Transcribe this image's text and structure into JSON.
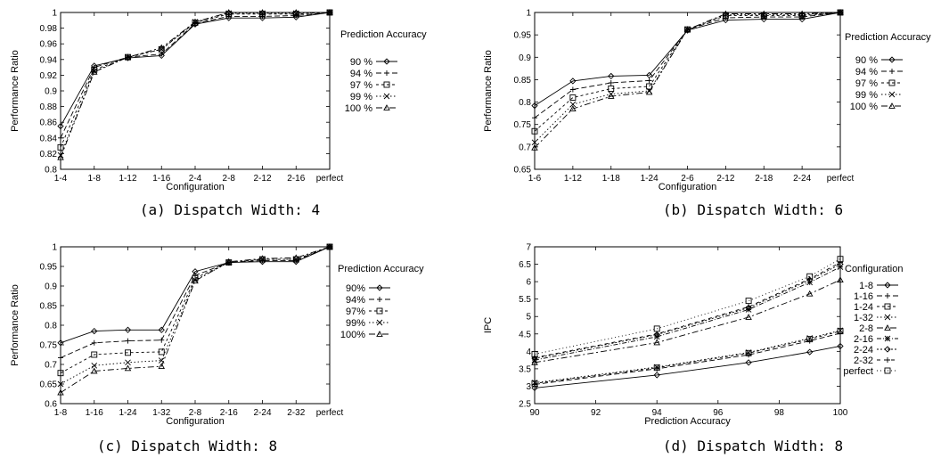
{
  "chart_data": [
    {
      "id": "a",
      "type": "line",
      "caption": "(a) Dispatch Width: 4",
      "xlabel": "Configuration",
      "ylabel": "Performance Ratio",
      "categories": [
        "1-4",
        "1-8",
        "1-12",
        "1-16",
        "2-4",
        "2-8",
        "2-12",
        "2-16",
        "perfect"
      ],
      "yticks": [
        "0.8",
        "0.82",
        "0.84",
        "0.86",
        "0.88",
        "0.9",
        "0.92",
        "0.94",
        "0.96",
        "0.98",
        "1"
      ],
      "ylim": [
        0.8,
        1.0
      ],
      "legend_title": "Prediction Accuracy",
      "legend_position": "right",
      "series": [
        {
          "name": "90 %",
          "values": [
            0.855,
            0.932,
            0.942,
            0.945,
            0.985,
            0.993,
            0.993,
            0.994,
            1.0
          ]
        },
        {
          "name": "94 %",
          "values": [
            0.84,
            0.93,
            0.943,
            0.947,
            0.986,
            0.995,
            0.995,
            0.996,
            1.0
          ]
        },
        {
          "name": "97 %",
          "values": [
            0.828,
            0.927,
            0.943,
            0.953,
            0.987,
            0.998,
            0.998,
            0.998,
            1.0
          ]
        },
        {
          "name": "99 %",
          "values": [
            0.818,
            0.925,
            0.943,
            0.953,
            0.988,
            0.999,
            0.999,
            0.999,
            1.0
          ]
        },
        {
          "name": "100 %",
          "values": [
            0.815,
            0.924,
            0.943,
            0.955,
            0.988,
            1.0,
            1.0,
            1.0,
            1.0
          ]
        }
      ]
    },
    {
      "id": "b",
      "type": "line",
      "caption": "(b) Dispatch Width: 6",
      "xlabel": "Configuration",
      "ylabel": "Performance Ratio",
      "categories": [
        "1-6",
        "1-12",
        "1-18",
        "1-24",
        "2-6",
        "2-12",
        "2-18",
        "2-24",
        "perfect"
      ],
      "yticks": [
        "0.65",
        "0.7",
        "0.75",
        "0.8",
        "0.85",
        "0.9",
        "0.95",
        "1"
      ],
      "ylim": [
        0.65,
        1.0
      ],
      "legend_title": "Prediction Accuracy",
      "legend_position": "right",
      "series": [
        {
          "name": "90 %",
          "values": [
            0.792,
            0.847,
            0.858,
            0.86,
            0.96,
            0.983,
            0.985,
            0.985,
            1.0
          ]
        },
        {
          "name": "94 %",
          "values": [
            0.765,
            0.828,
            0.843,
            0.848,
            0.962,
            0.988,
            0.99,
            0.99,
            1.0
          ]
        },
        {
          "name": "97 %",
          "values": [
            0.735,
            0.81,
            0.83,
            0.835,
            0.962,
            0.993,
            0.993,
            0.993,
            1.0
          ]
        },
        {
          "name": "99 %",
          "values": [
            0.71,
            0.795,
            0.818,
            0.825,
            0.962,
            0.995,
            0.995,
            0.995,
            1.0
          ]
        },
        {
          "name": "100 %",
          "values": [
            0.698,
            0.785,
            0.813,
            0.822,
            0.962,
            0.997,
            0.997,
            0.997,
            1.0
          ]
        }
      ]
    },
    {
      "id": "c",
      "type": "line",
      "caption": "(c) Dispatch Width: 8",
      "xlabel": "Configuration",
      "ylabel": "Performance Ratio",
      "categories": [
        "1-8",
        "1-16",
        "1-24",
        "1-32",
        "2-8",
        "2-16",
        "2-24",
        "2-32",
        "perfect"
      ],
      "yticks": [
        "0.6",
        "0.65",
        "0.7",
        "0.75",
        "0.8",
        "0.85",
        "0.9",
        "0.95",
        "1"
      ],
      "ylim": [
        0.6,
        1.0
      ],
      "legend_title": "Prediction Accuracy",
      "legend_position": "right",
      "series": [
        {
          "name": "90%",
          "values": [
            0.755,
            0.785,
            0.788,
            0.788,
            0.937,
            0.96,
            0.962,
            0.962,
            1.0
          ]
        },
        {
          "name": "94%",
          "values": [
            0.717,
            0.755,
            0.76,
            0.762,
            0.927,
            0.96,
            0.965,
            0.965,
            1.0
          ]
        },
        {
          "name": "97%",
          "values": [
            0.678,
            0.725,
            0.73,
            0.732,
            0.92,
            0.96,
            0.968,
            0.968,
            1.0
          ]
        },
        {
          "name": "99%",
          "values": [
            0.65,
            0.697,
            0.705,
            0.71,
            0.915,
            0.96,
            0.968,
            0.968,
            1.0
          ]
        },
        {
          "name": "100%",
          "values": [
            0.628,
            0.683,
            0.69,
            0.695,
            0.913,
            0.962,
            0.97,
            0.972,
            1.0
          ]
        }
      ]
    },
    {
      "id": "d",
      "type": "line",
      "caption": "(d) Dispatch Width: 8",
      "xlabel": "Prediction Accuracy",
      "ylabel": "IPC",
      "xticks": [
        "90",
        "92",
        "94",
        "96",
        "98",
        "100"
      ],
      "xlim": [
        90,
        100
      ],
      "yticks": [
        "2.5",
        "3",
        "3.5",
        "4",
        "4.5",
        "5",
        "5.5",
        "6",
        "6.5",
        "7"
      ],
      "ylim": [
        2.5,
        7.0
      ],
      "legend_title": "Configuration",
      "legend_position": "right",
      "x": [
        90,
        94,
        97,
        99,
        100
      ],
      "series": [
        {
          "name": "1-8",
          "values": [
            2.95,
            3.32,
            3.68,
            3.98,
            4.15
          ]
        },
        {
          "name": "1-16",
          "values": [
            3.05,
            3.5,
            3.9,
            4.3,
            4.52
          ]
        },
        {
          "name": "1-24",
          "values": [
            3.08,
            3.53,
            3.95,
            4.35,
            4.58
          ]
        },
        {
          "name": "1-32",
          "values": [
            3.1,
            3.55,
            3.97,
            4.38,
            4.6
          ]
        },
        {
          "name": "2-8",
          "values": [
            3.68,
            4.25,
            4.98,
            5.65,
            6.05
          ]
        },
        {
          "name": "2-16",
          "values": [
            3.75,
            4.42,
            5.2,
            5.98,
            6.42
          ]
        },
        {
          "name": "2-24",
          "values": [
            3.8,
            4.48,
            5.25,
            6.05,
            6.5
          ]
        },
        {
          "name": "2-32",
          "values": [
            3.82,
            4.5,
            5.28,
            6.08,
            6.55
          ]
        },
        {
          "name": "perfect",
          "values": [
            3.92,
            4.65,
            5.45,
            6.15,
            6.65
          ]
        }
      ]
    }
  ]
}
